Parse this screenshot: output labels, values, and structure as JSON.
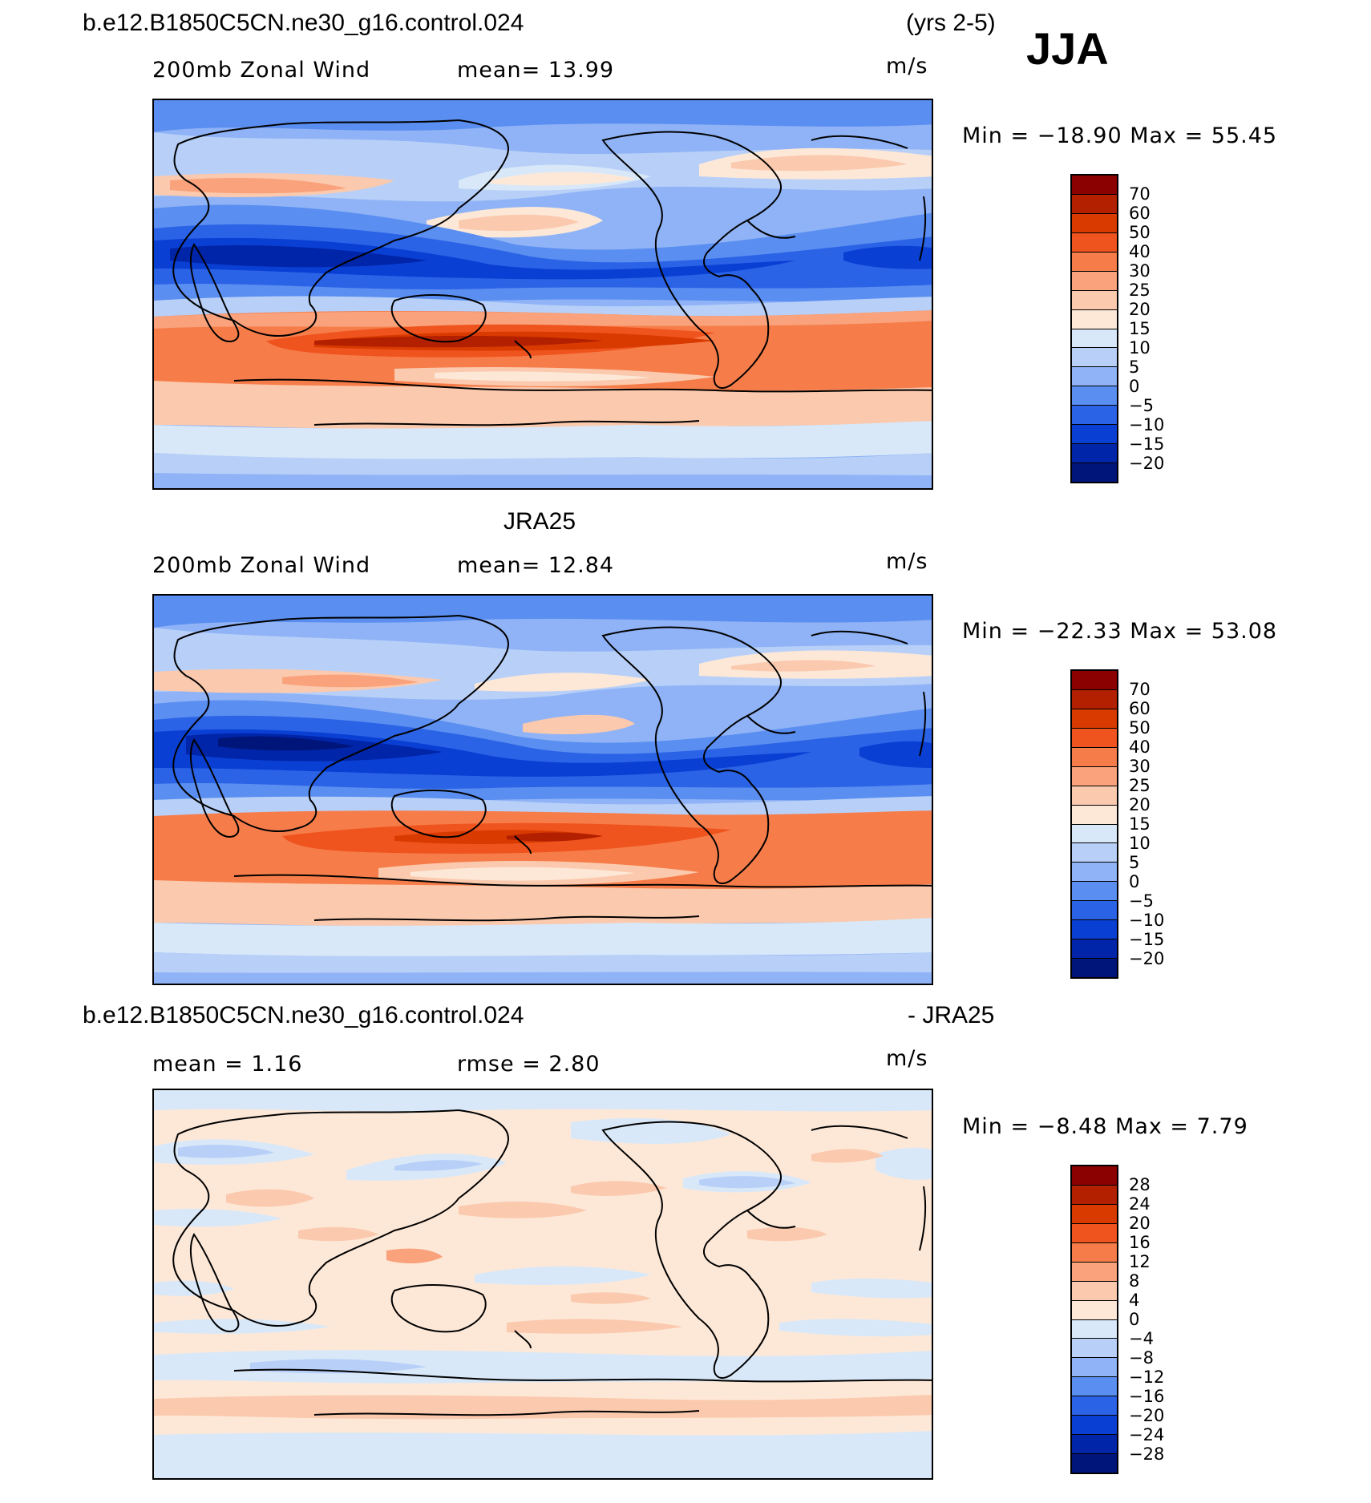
{
  "header": {
    "case_title": "b.e12.B1850C5CN.ne30_g16.control.024",
    "years": "(yrs 2-5)",
    "season": "JJA"
  },
  "panels": [
    {
      "id": "model",
      "title": "",
      "variable": "200mb Zonal Wind",
      "stat_text": "mean=   13.99",
      "units": "m/s",
      "minmax": "Min = −18.90 Max =   55.45",
      "colorbar_labels": [
        "70",
        "60",
        "50",
        "40",
        "30",
        "25",
        "20",
        "15",
        "10",
        "5",
        "0",
        "−5",
        "−10",
        "−15",
        "−20"
      ]
    },
    {
      "id": "obs",
      "title": "JRA25",
      "variable": "200mb Zonal Wind",
      "stat_text": "mean=   12.84",
      "units": "m/s",
      "minmax": "Min = −22.33 Max =   53.08",
      "colorbar_labels": [
        "70",
        "60",
        "50",
        "40",
        "30",
        "25",
        "20",
        "15",
        "10",
        "5",
        "0",
        "−5",
        "−10",
        "−15",
        "−20"
      ]
    },
    {
      "id": "diff",
      "title_left": "b.e12.B1850C5CN.ne30_g16.control.024",
      "title_right": "- JRA25",
      "stat_mean": "mean =    1.16",
      "stat_rmse": "rmse =    2.80",
      "units": "m/s",
      "minmax": "Min =   −8.48 Max =    7.79",
      "colorbar_labels": [
        "28",
        "24",
        "20",
        "16",
        "12",
        "8",
        "4",
        "0",
        "−4",
        "−8",
        "−12",
        "−16",
        "−20",
        "−24",
        "−28"
      ]
    }
  ],
  "colors": {
    "main_scale": [
      "#8b0000",
      "#b22000",
      "#d83a00",
      "#f0541e",
      "#f67d4a",
      "#f9a27c",
      "#fbc9ad",
      "#fde8d8",
      "#d8e8f8",
      "#b8d0f8",
      "#8fb3f6",
      "#5a8ef0",
      "#2b63e6",
      "#0a3fd4",
      "#0025a8",
      "#00157a"
    ],
    "diff_scale": [
      "#8b0000",
      "#b22000",
      "#d83a00",
      "#f0541e",
      "#f67d4a",
      "#f9a27c",
      "#fbc9ad",
      "#fde8d8",
      "#d8e8f8",
      "#b8d0f8",
      "#8fb3f6",
      "#5a8ef0",
      "#2b63e6",
      "#0a3fd4",
      "#0025a8",
      "#00157a"
    ]
  }
}
